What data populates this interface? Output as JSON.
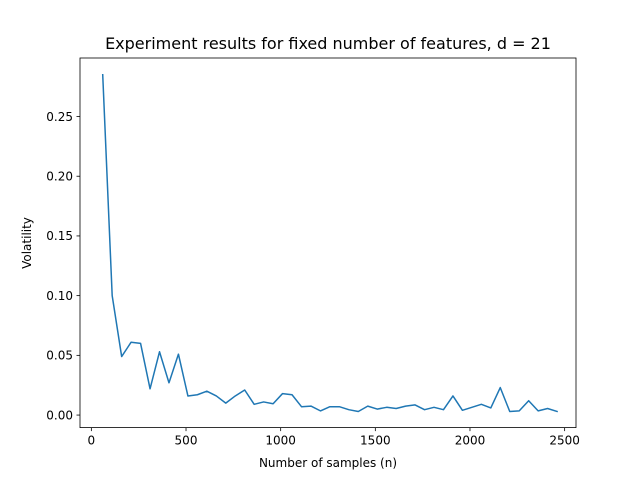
{
  "chart_data": {
    "type": "line",
    "title": "Experiment results for fixed number of features, d = 21",
    "xlabel": "Number of samples (n)",
    "ylabel": "Volatility",
    "xlim": [
      -60,
      2560
    ],
    "ylim": [
      -0.0105,
      0.299
    ],
    "xticks": [
      0,
      500,
      1000,
      1500,
      2000,
      2500
    ],
    "xtick_labels": [
      "0",
      "500",
      "1000",
      "1500",
      "2000",
      "2500"
    ],
    "yticks": [
      0.0,
      0.05,
      0.1,
      0.15,
      0.2,
      0.25
    ],
    "ytick_labels": [
      "0.00",
      "0.05",
      "0.10",
      "0.15",
      "0.20",
      "0.25"
    ],
    "grid": false,
    "series": [
      {
        "color": "#1f77b4",
        "x": [
          60,
          110,
          160,
          210,
          260,
          310,
          360,
          410,
          460,
          510,
          560,
          610,
          660,
          710,
          760,
          810,
          860,
          910,
          960,
          1010,
          1060,
          1110,
          1160,
          1210,
          1260,
          1310,
          1360,
          1410,
          1460,
          1510,
          1560,
          1610,
          1660,
          1710,
          1760,
          1810,
          1860,
          1910,
          1960,
          2010,
          2060,
          2110,
          2160,
          2210,
          2260,
          2310,
          2360,
          2410,
          2460
        ],
        "y": [
          0.285,
          0.1,
          0.049,
          0.061,
          0.06,
          0.022,
          0.053,
          0.027,
          0.051,
          0.016,
          0.017,
          0.02,
          0.016,
          0.01,
          0.016,
          0.021,
          0.009,
          0.011,
          0.0095,
          0.018,
          0.017,
          0.007,
          0.0075,
          0.0035,
          0.007,
          0.007,
          0.0045,
          0.003,
          0.0075,
          0.005,
          0.0065,
          0.0055,
          0.0075,
          0.0085,
          0.0045,
          0.0065,
          0.0045,
          0.016,
          0.004,
          0.0065,
          0.009,
          0.006,
          0.023,
          0.003,
          0.0035,
          0.012,
          0.0035,
          0.0055,
          0.003
        ]
      }
    ]
  }
}
